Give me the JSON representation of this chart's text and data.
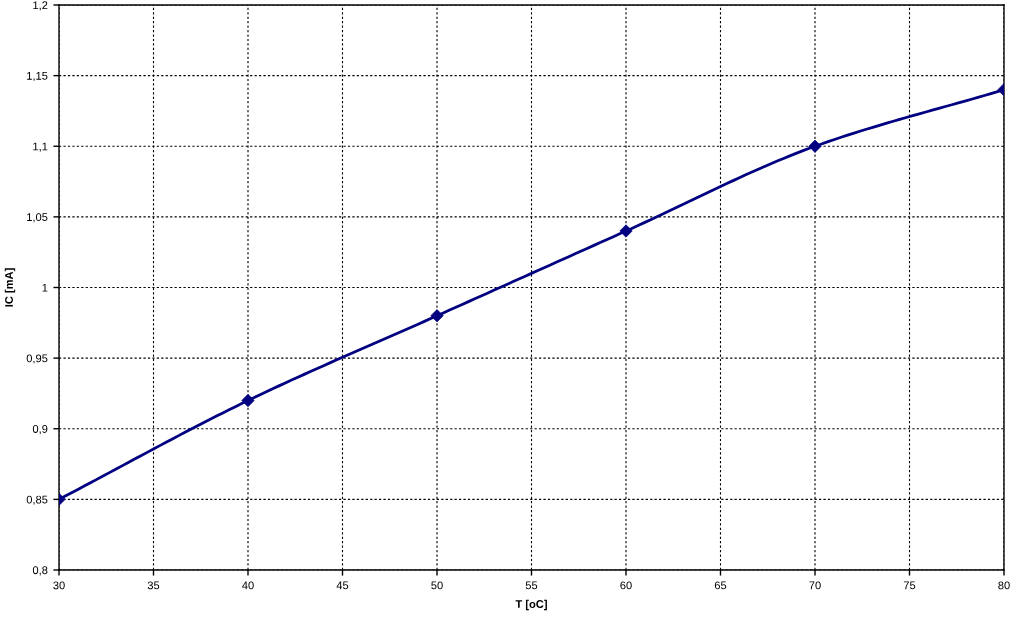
{
  "chart_data": {
    "type": "line",
    "xlabel": "T [oC]",
    "ylabel": "IC [mA]",
    "x": [
      30,
      40,
      50,
      60,
      70,
      80
    ],
    "series": [
      {
        "color": "#000080",
        "values": [
          0.85,
          0.92,
          0.98,
          1.04,
          1.1,
          1.14
        ]
      }
    ],
    "xlim": [
      30,
      80
    ],
    "xticks": [
      30,
      35,
      40,
      45,
      50,
      55,
      60,
      65,
      70,
      75,
      80
    ],
    "ylim": [
      0.8,
      1.2
    ],
    "yticks": [
      {
        "value": 0.8,
        "label": "0,8"
      },
      {
        "value": 0.85,
        "label": "0,85"
      },
      {
        "value": 0.9,
        "label": "0,9"
      },
      {
        "value": 0.95,
        "label": "0,95"
      },
      1,
      {
        "value": 1.05,
        "label": "1,05"
      },
      {
        "value": 1.1,
        "label": "1,1"
      },
      {
        "value": 1.15,
        "label": "1,15"
      },
      {
        "value": 1.2,
        "label": "1,2"
      }
    ],
    "grid": true,
    "marker": "diamond",
    "line_style": "solid"
  }
}
